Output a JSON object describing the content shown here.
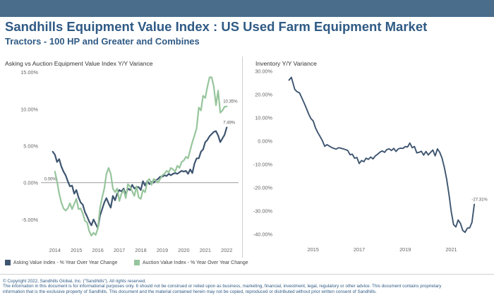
{
  "header": {
    "title": "Sandhills Equipment Value Index : US Used Farm Equipment Market",
    "subtitle": "Tractors - 100 HP and Greater and Combines"
  },
  "colors": {
    "asking": "#3e5570",
    "auction": "#97c59c",
    "header_bar": "#4a6d8c",
    "title": "#2f5a84"
  },
  "legend": {
    "asking": "Asking Value Index - % Year Over Year Change",
    "auction": "Auction Value Index - % Year Over Year Change"
  },
  "footer": {
    "line1": "© Copyright 2022, Sandhills Global, Inc. (\"Sandhills\"). All rights reserved.",
    "line2": "The information in this document is for informational purposes only.  It should not be construed or relied upon as business, marketing, financial, investment, legal, regulatory or other advice. This document contains proprietary",
    "line3": "information that is the exclusive property of Sandhills. This document and the material contained herein may not be copied, reproduced or distributed without prior written consent of Sandhills."
  },
  "chart_data": [
    {
      "type": "line",
      "title": "Asking vs Auction Equipment Value Index Y/Y Variance",
      "xlabel": "",
      "ylabel": "",
      "x_ticks": [
        "2014",
        "2015",
        "2016",
        "2017",
        "2018",
        "2019",
        "2020",
        "2021",
        "2022"
      ],
      "y_ticks": [
        "-5.00%",
        "0.00%",
        "5.00%",
        "10.00%",
        "15.00%"
      ],
      "xlim": [
        2013.35,
        2022.55
      ],
      "ylim": [
        -7.5,
        15.5
      ],
      "grid": false,
      "legend_position": "bottom",
      "annotations": [
        {
          "text": "0.00%",
          "x": 2013.5,
          "y": 0.0
        },
        {
          "text": "10.35%",
          "x": 2021.9,
          "y": 10.35
        },
        {
          "text": "7.49%",
          "x": 2021.9,
          "y": 7.49
        }
      ],
      "series": [
        {
          "name": "Asking Value Index - % Year Over Year Change",
          "key": "asking",
          "x": [
            2013.9,
            2014.0,
            2014.1,
            2014.2,
            2014.3,
            2014.4,
            2014.5,
            2014.6,
            2014.7,
            2014.8,
            2014.9,
            2015.0,
            2015.1,
            2015.2,
            2015.3,
            2015.4,
            2015.5,
            2015.6,
            2015.7,
            2015.8,
            2015.9,
            2016.0,
            2016.1,
            2016.2,
            2016.3,
            2016.4,
            2016.5,
            2016.6,
            2016.7,
            2016.8,
            2016.9,
            2017.0,
            2017.1,
            2017.2,
            2017.3,
            2017.4,
            2017.5,
            2017.6,
            2017.7,
            2017.8,
            2017.9,
            2018.0,
            2018.1,
            2018.2,
            2018.3,
            2018.4,
            2018.5,
            2018.6,
            2018.7,
            2018.8,
            2018.9,
            2019.0,
            2019.1,
            2019.2,
            2019.3,
            2019.4,
            2019.5,
            2019.6,
            2019.7,
            2019.8,
            2019.9,
            2020.0,
            2020.1,
            2020.2,
            2020.3,
            2020.4,
            2020.5,
            2020.6,
            2020.7,
            2020.8,
            2020.9,
            2021.0,
            2021.1,
            2021.2,
            2021.3,
            2021.4,
            2021.5,
            2021.6,
            2021.7,
            2021.8,
            2021.9,
            2022.0
          ],
          "y": [
            4.2,
            3.8,
            2.8,
            3.2,
            2.2,
            1.5,
            1.0,
            0.2,
            -0.5,
            -0.4,
            -1.5,
            -1.0,
            -2.0,
            -2.7,
            -3.0,
            -4.0,
            -4.6,
            -5.3,
            -5.8,
            -5.0,
            -5.6,
            -6.2,
            -4.5,
            -3.6,
            -2.7,
            -2.1,
            -2.8,
            -3.4,
            -1.8,
            -2.4,
            -1.5,
            -1.0,
            -1.2,
            -0.8,
            -1.6,
            -0.8,
            -1.0,
            -0.3,
            -0.8,
            -0.6,
            -0.6,
            -1.0,
            0.2,
            -0.4,
            0.2,
            -0.2,
            0.1,
            0.0,
            0.3,
            0.5,
            0.8,
            0.8,
            1.0,
            0.9,
            1.2,
            1.0,
            1.2,
            1.3,
            1.2,
            1.4,
            1.6,
            1.5,
            1.6,
            1.2,
            1.8,
            1.3,
            2.6,
            3.3,
            3.3,
            4.2,
            4.5,
            5.5,
            5.8,
            6.3,
            6.6,
            6.9,
            7.0,
            6.4,
            5.5,
            6.0,
            6.5,
            7.49
          ]
        },
        {
          "name": "Auction Value Index - % Year Over Year Change",
          "key": "auction",
          "x": [
            2014.0,
            2014.1,
            2014.2,
            2014.3,
            2014.4,
            2014.5,
            2014.6,
            2014.7,
            2014.8,
            2014.9,
            2015.0,
            2015.1,
            2015.2,
            2015.3,
            2015.4,
            2015.5,
            2015.6,
            2015.7,
            2015.8,
            2015.9,
            2016.0,
            2016.1,
            2016.2,
            2016.3,
            2016.4,
            2016.5,
            2016.6,
            2016.7,
            2016.8,
            2016.9,
            2017.0,
            2017.1,
            2017.2,
            2017.3,
            2017.4,
            2017.5,
            2017.6,
            2017.7,
            2017.8,
            2017.9,
            2018.0,
            2018.1,
            2018.2,
            2018.3,
            2018.4,
            2018.5,
            2018.6,
            2018.7,
            2018.8,
            2018.9,
            2019.0,
            2019.1,
            2019.2,
            2019.3,
            2019.4,
            2019.5,
            2019.6,
            2019.7,
            2019.8,
            2019.9,
            2020.0,
            2020.1,
            2020.2,
            2020.3,
            2020.4,
            2020.5,
            2020.6,
            2020.7,
            2020.8,
            2020.9,
            2021.0,
            2021.1,
            2021.2,
            2021.3,
            2021.4,
            2021.5,
            2021.6,
            2021.7,
            2021.8,
            2021.9,
            2022.0
          ],
          "y": [
            1.5,
            0.2,
            -1.5,
            -2.7,
            -3.5,
            -3.8,
            -3.5,
            -2.8,
            -3.6,
            -2.9,
            -2.2,
            -3.6,
            -3.5,
            -4.2,
            -5.2,
            -5.4,
            -6.6,
            -7.2,
            -6.8,
            -7.1,
            -6.2,
            -3.5,
            -2.0,
            -0.8,
            1.2,
            2.0,
            1.2,
            -0.8,
            -1.3,
            -0.8,
            -2.5,
            -1.5,
            -1.0,
            -2.1,
            -0.2,
            -0.5,
            -1.2,
            -1.8,
            -0.5,
            -2.0,
            -2.2,
            -1.0,
            -1.3,
            0.2,
            0.5,
            -0.3,
            0.5,
            0.3,
            0.0,
            0.5,
            1.0,
            1.2,
            1.6,
            1.4,
            2.0,
            1.8,
            1.5,
            2.3,
            2.0,
            2.8,
            3.0,
            3.5,
            3.3,
            4.4,
            5.5,
            6.4,
            7.4,
            10.2,
            9.8,
            11.8,
            11.5,
            13.0,
            14.3,
            14.3,
            13.0,
            10.5,
            12.5,
            9.5,
            9.8,
            10.3,
            10.35
          ]
        }
      ]
    },
    {
      "type": "line",
      "title": "Inventory Y/Y Variance",
      "xlabel": "",
      "ylabel": "",
      "x_ticks": [
        "2015",
        "2017",
        "2019",
        "2021"
      ],
      "y_ticks": [
        "-40.00%",
        "-30.00%",
        "-20.00%",
        "-10.00%",
        "0.00%",
        "10.00%",
        "20.00%",
        "30.00%"
      ],
      "xlim": [
        2013.35,
        2022.55
      ],
      "ylim": [
        -42,
        31
      ],
      "grid": false,
      "legend_position": "none",
      "annotations": [
        {
          "text": "-27.31%",
          "x": 2021.95,
          "y": -27.31
        }
      ],
      "series": [
        {
          "key": "inventory",
          "x": [
            2013.95,
            2014.05,
            2014.1,
            2014.2,
            2014.3,
            2014.4,
            2014.5,
            2014.6,
            2014.7,
            2014.8,
            2014.9,
            2015.0,
            2015.1,
            2015.2,
            2015.3,
            2015.4,
            2015.5,
            2015.6,
            2015.7,
            2015.8,
            2015.9,
            2016.0,
            2016.1,
            2016.2,
            2016.3,
            2016.4,
            2016.5,
            2016.6,
            2016.7,
            2016.8,
            2016.9,
            2017.0,
            2017.1,
            2017.2,
            2017.3,
            2017.4,
            2017.5,
            2017.6,
            2017.7,
            2017.8,
            2017.9,
            2018.0,
            2018.1,
            2018.2,
            2018.3,
            2018.4,
            2018.5,
            2018.6,
            2018.7,
            2018.8,
            2018.9,
            2019.0,
            2019.1,
            2019.2,
            2019.3,
            2019.4,
            2019.5,
            2019.6,
            2019.7,
            2019.8,
            2019.9,
            2020.0,
            2020.1,
            2020.2,
            2020.3,
            2020.4,
            2020.5,
            2020.6,
            2020.7,
            2020.8,
            2020.9,
            2021.0,
            2021.1,
            2021.2,
            2021.3,
            2021.4,
            2021.5,
            2021.6,
            2021.7,
            2021.8,
            2021.9,
            2022.0
          ],
          "y": [
            26,
            27.2,
            25.5,
            22,
            21,
            20.6,
            18.5,
            16.3,
            14,
            11.5,
            9.5,
            8.5,
            5.5,
            3.5,
            1.8,
            0,
            -2.4,
            -1.7,
            -2.3,
            -2.9,
            -3.3,
            -3.6,
            -3.0,
            -3.2,
            -3.5,
            -3.8,
            -4.2,
            -6.0,
            -5.8,
            -7.5,
            -7.2,
            -9.8,
            -8.5,
            -9.0,
            -7.5,
            -8.0,
            -7.0,
            -7.8,
            -6.5,
            -5.8,
            -4.9,
            -4.4,
            -5.0,
            -3.8,
            -3.5,
            -4.2,
            -3.3,
            -4.6,
            -3.5,
            -3.2,
            -3.3,
            -2.5,
            -2.7,
            -1.0,
            -3.0,
            -2.5,
            -5.2,
            -5.0,
            -4.5,
            -6.2,
            -4.6,
            -6.1,
            -5.0,
            -4.0,
            -6.5,
            -3.5,
            -5.0,
            -7.5,
            -11.5,
            -16.5,
            -23,
            -30.5,
            -36,
            -37,
            -34,
            -35.5,
            -38.5,
            -39.3,
            -37.5,
            -37.4,
            -35,
            -27.31
          ]
        }
      ]
    }
  ]
}
